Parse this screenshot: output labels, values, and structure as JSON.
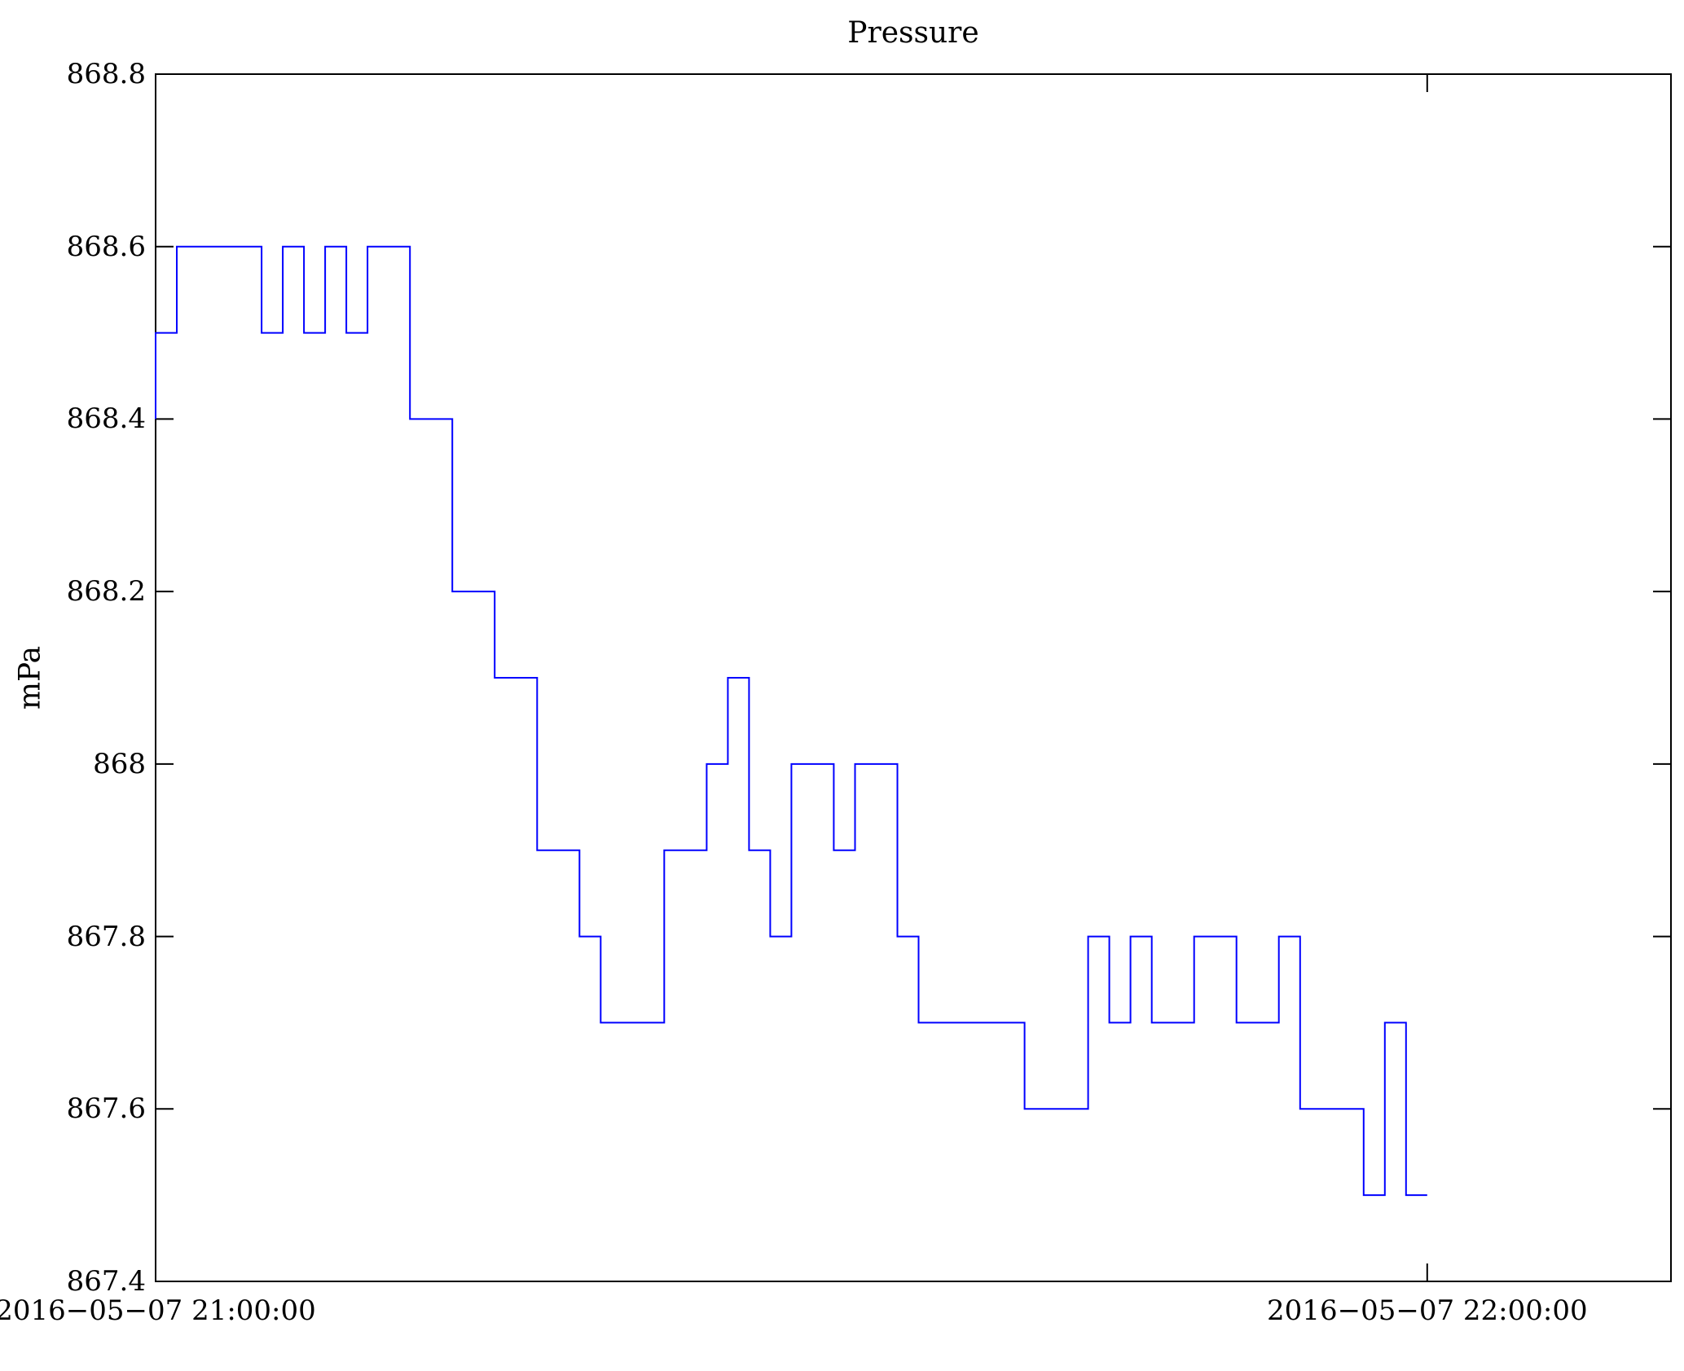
{
  "page": {
    "background": "#ffffff"
  },
  "chart_data": {
    "type": "line",
    "step": "post",
    "title": "Pressure",
    "xlabel": "",
    "ylabel": "mPa",
    "line_color": "#0000ff",
    "axis_color": "#000000",
    "grid": false,
    "legend": "none",
    "ylim": [
      867.4,
      868.8
    ],
    "x_range_minutes": [
      0,
      71.5
    ],
    "y_ticks": [
      {
        "value": 867.4,
        "label": "867.4"
      },
      {
        "value": 867.6,
        "label": "867.6"
      },
      {
        "value": 867.8,
        "label": "867.8"
      },
      {
        "value": 868.0,
        "label": "868"
      },
      {
        "value": 868.2,
        "label": "868.2"
      },
      {
        "value": 868.4,
        "label": "868.4"
      },
      {
        "value": 868.6,
        "label": "868.6"
      },
      {
        "value": 868.8,
        "label": "868.8"
      }
    ],
    "x_ticks": [
      {
        "minute": 0,
        "label": "2016−05−07 21:00:00"
      },
      {
        "minute": 60,
        "label": "2016−05−07 22:00:00"
      }
    ],
    "series": [
      {
        "name": "Pressure",
        "unit": "mPa",
        "minutes": [
          0,
          0,
          1,
          2,
          3,
          4,
          5,
          6,
          7,
          8,
          9,
          10,
          11,
          12,
          13,
          14,
          15,
          16,
          17,
          18,
          19,
          20,
          21,
          22,
          23,
          24,
          25,
          26,
          27,
          28,
          29,
          30,
          31,
          32,
          33,
          34,
          35,
          36,
          37,
          38,
          39,
          40,
          41,
          42,
          43,
          44,
          45,
          46,
          47,
          48,
          49,
          50,
          51,
          52,
          53,
          54,
          55,
          56,
          57,
          58,
          59,
          60
        ],
        "values": [
          868.4,
          868.5,
          868.6,
          868.6,
          868.6,
          868.6,
          868.5,
          868.6,
          868.5,
          868.6,
          868.5,
          868.6,
          868.6,
          868.4,
          868.4,
          868.2,
          868.2,
          868.1,
          868.1,
          867.9,
          867.9,
          867.8,
          867.7,
          867.7,
          867.7,
          867.9,
          867.9,
          868.0,
          868.1,
          867.9,
          867.8,
          868.0,
          868.0,
          867.9,
          868.0,
          868.0,
          867.8,
          867.7,
          867.7,
          867.7,
          867.7,
          867.7,
          867.6,
          867.6,
          867.6,
          867.8,
          867.7,
          867.8,
          867.7,
          867.7,
          867.8,
          867.8,
          867.7,
          867.7,
          867.8,
          867.6,
          867.6,
          867.6,
          867.5,
          867.7,
          867.5,
          867.5
        ]
      }
    ]
  }
}
